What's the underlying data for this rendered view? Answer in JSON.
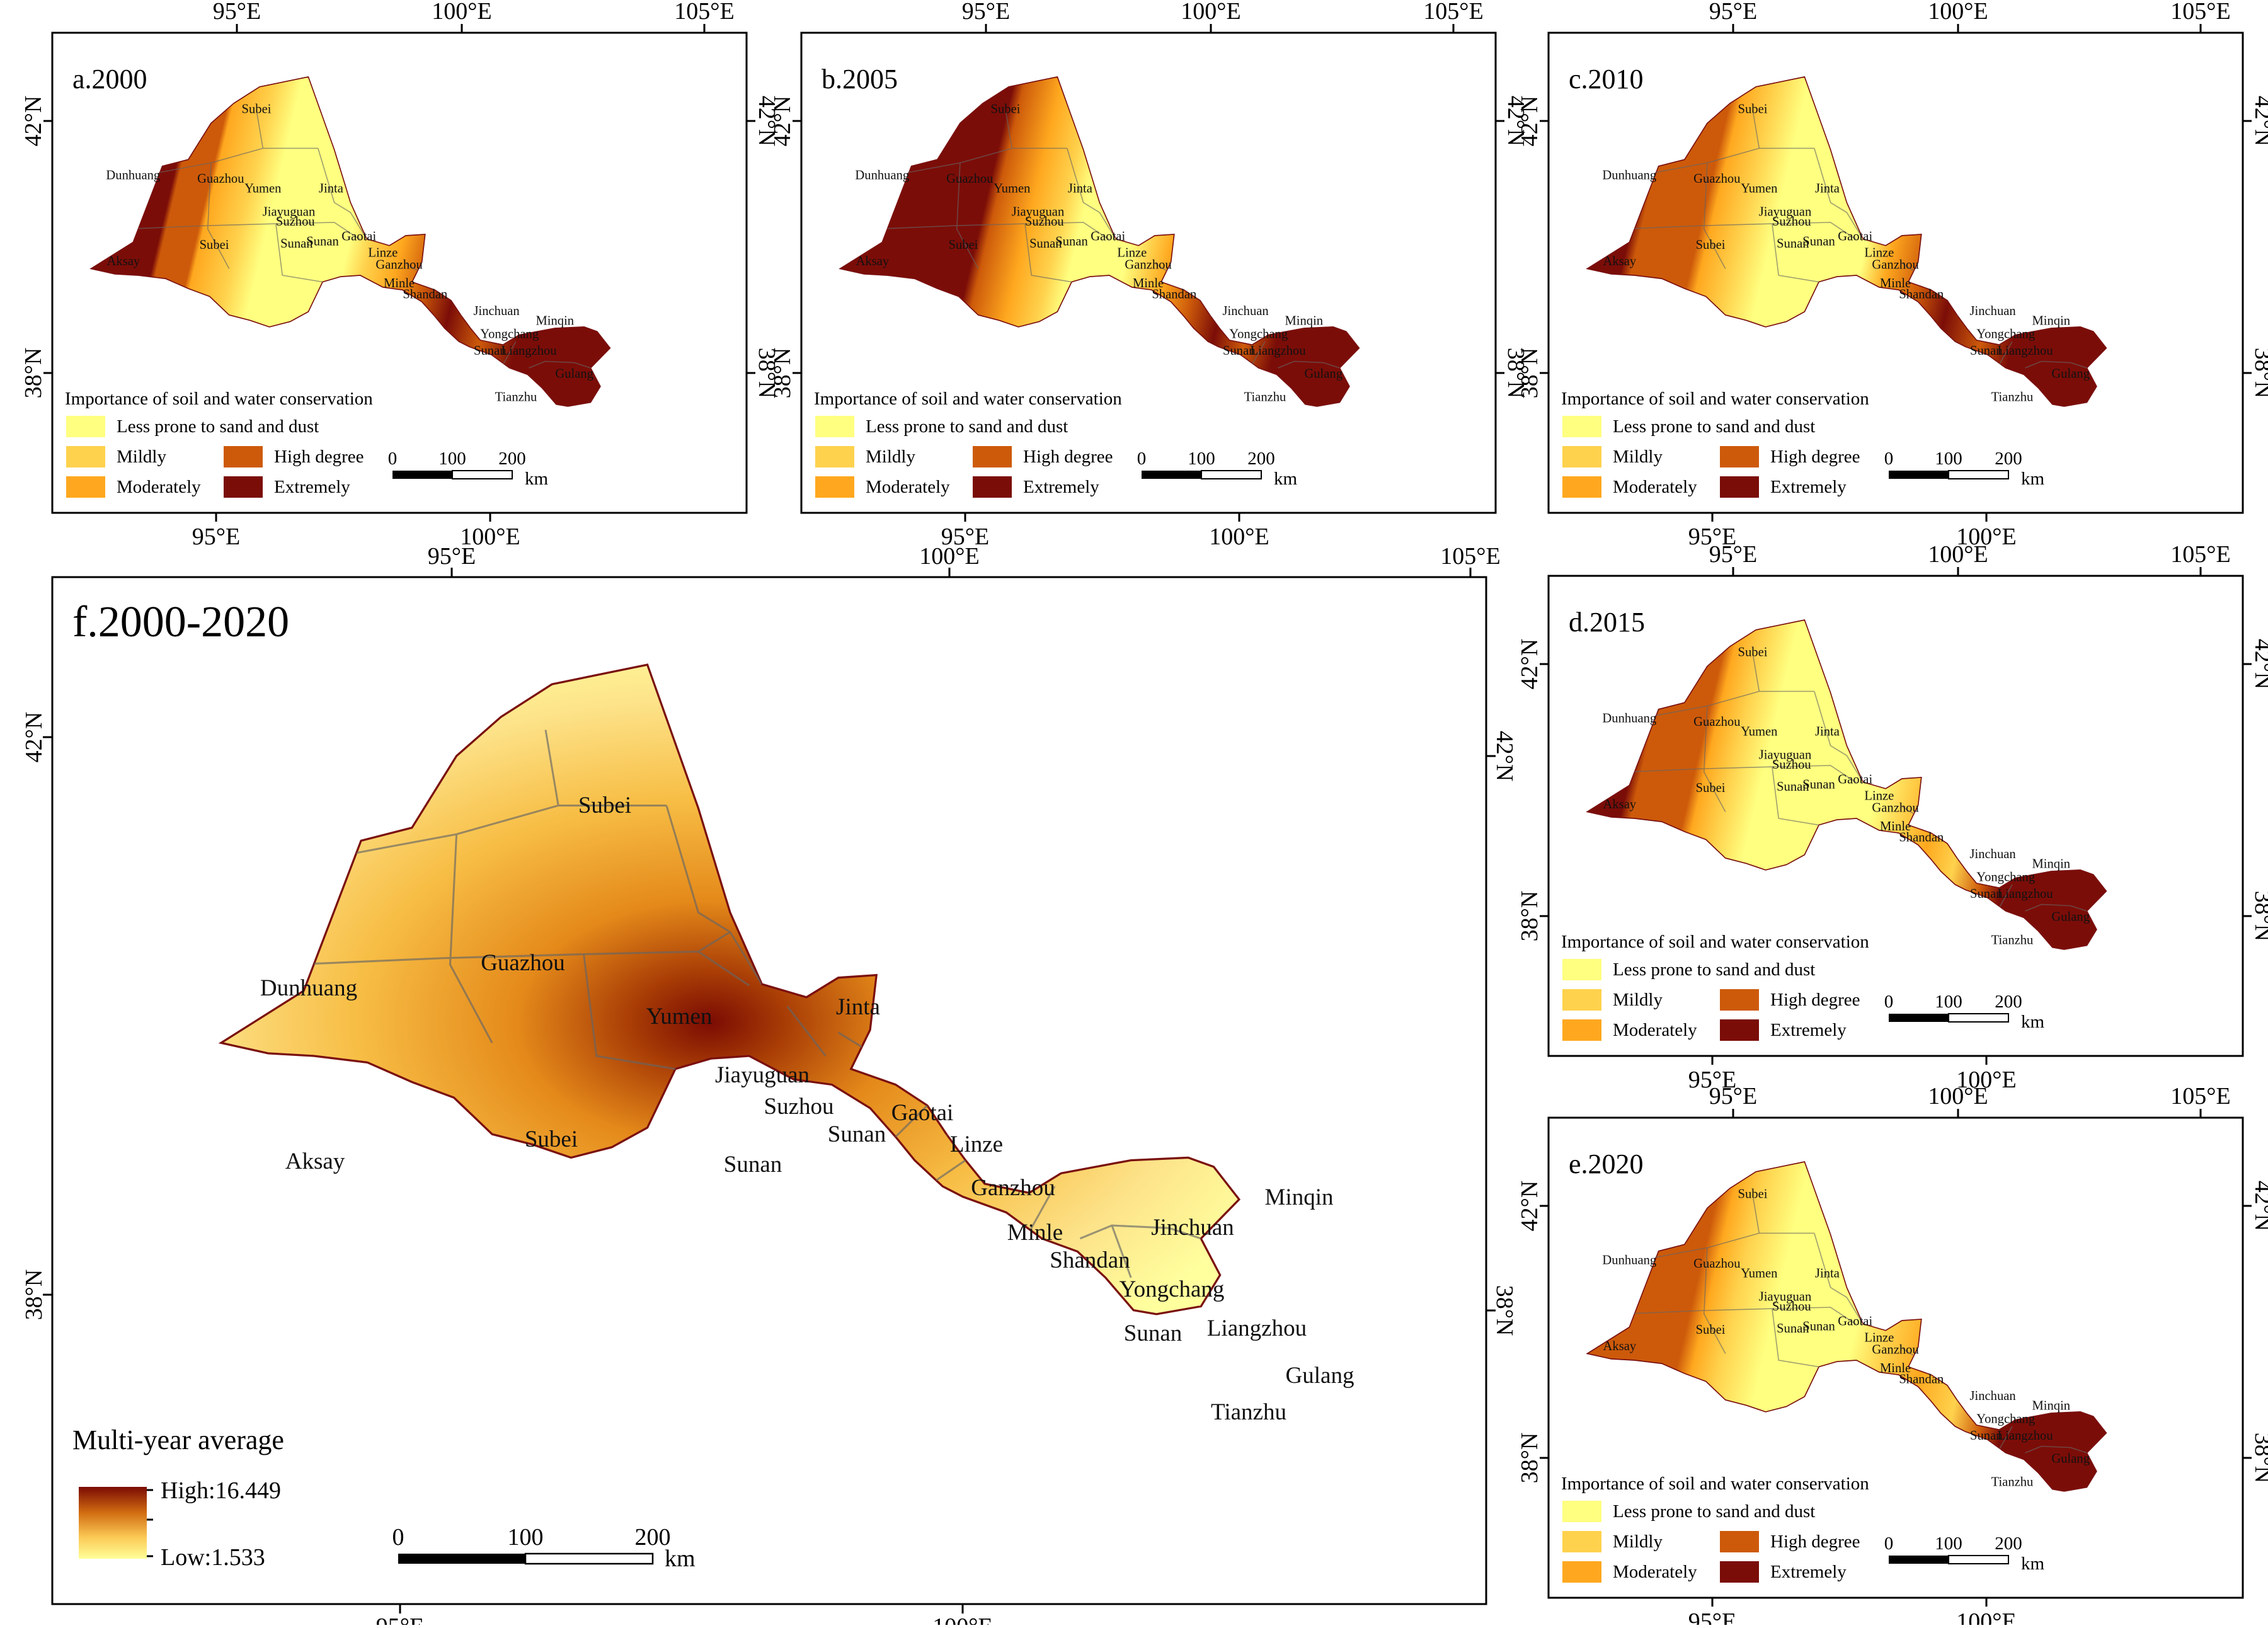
{
  "colors": {
    "less": "#ffff80",
    "mild": "#ffd24d",
    "moderate": "#ffa81f",
    "high": "#cd5a0a",
    "extreme": "#7b0d08",
    "border": "#7a1010",
    "gradient_low": "#ffff99",
    "gradient_high": "#7a0b04"
  },
  "coords": {
    "lon": [
      "95°E",
      "100°E",
      "105°E"
    ],
    "lat": [
      "42°N",
      "38°N"
    ]
  },
  "panels": [
    {
      "title": "a.2000"
    },
    {
      "title": "b.2005"
    },
    {
      "title": "c.2010"
    },
    {
      "title": "d.2015"
    },
    {
      "title": "e.2020"
    }
  ],
  "legend": {
    "title": "Importance of soil and water conservation",
    "items": [
      {
        "label": "Less prone to sand and dust",
        "key": "less"
      },
      {
        "label": "Mildly",
        "key": "mild"
      },
      {
        "label": "Moderately",
        "key": "moderate"
      },
      {
        "label": "High degree",
        "key": "high"
      },
      {
        "label": "Extremely",
        "key": "extreme"
      }
    ]
  },
  "scalebar": {
    "ticks": [
      "0",
      "100",
      "200"
    ],
    "unit": "km"
  },
  "main_panel": {
    "title": "f.2000-2020",
    "legend_title": "Multi-year average",
    "high_label": "High:16.449",
    "low_label": "Low:1.533"
  },
  "places": [
    "Subei",
    "Guazhou",
    "Dunhuang",
    "Yumen",
    "Jinta",
    "Jiayuguan",
    "Suzhou",
    "Aksay",
    "Subei",
    "Sunan",
    "Sunan",
    "Gaotai",
    "Linze",
    "Ganzhou",
    "Minle",
    "Shandan",
    "Jinchuan",
    "Minqin",
    "Yongchang",
    "Sunan",
    "Liangzhou",
    "Gulang",
    "Tianzhu"
  ]
}
